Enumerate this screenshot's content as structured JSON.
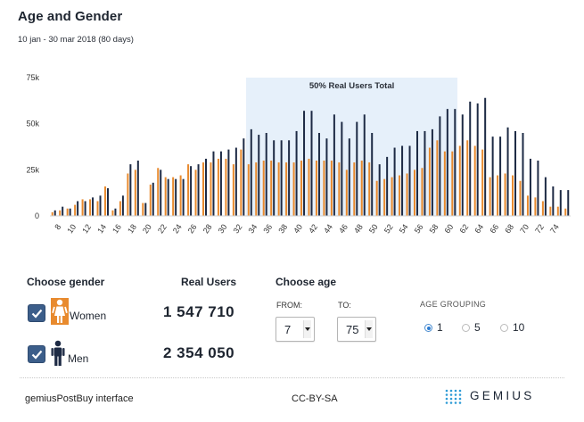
{
  "header": {
    "title": "Age and Gender",
    "subtitle": "10 jan - 30 mar 2018 (80 days)"
  },
  "chart_data": {
    "type": "bar",
    "highlight": {
      "from": 33,
      "to": 60,
      "label": "50% Real Users Total"
    },
    "x": [
      7,
      8,
      9,
      10,
      11,
      12,
      13,
      14,
      15,
      16,
      17,
      18,
      19,
      20,
      21,
      22,
      23,
      24,
      25,
      26,
      27,
      28,
      29,
      30,
      31,
      32,
      33,
      34,
      35,
      36,
      37,
      38,
      39,
      40,
      41,
      42,
      43,
      44,
      45,
      46,
      47,
      48,
      49,
      50,
      51,
      52,
      53,
      54,
      55,
      56,
      57,
      58,
      59,
      60,
      61,
      62,
      63,
      64,
      65,
      66,
      67,
      68,
      69,
      70,
      71,
      72,
      73,
      74,
      75
    ],
    "x_tick_labels": [
      "8",
      "10",
      "12",
      "14",
      "16",
      "18",
      "20",
      "22",
      "24",
      "26",
      "28",
      "30",
      "32",
      "34",
      "36",
      "38",
      "40",
      "42",
      "44",
      "46",
      "48",
      "50",
      "52",
      "54",
      "56",
      "58",
      "60",
      "62",
      "64",
      "66",
      "68",
      "70",
      "72",
      "74"
    ],
    "y_ticks": [
      "0",
      "25k",
      "50k",
      "75k"
    ],
    "ylim": [
      0,
      75000
    ],
    "series": [
      {
        "name": "Women",
        "color": "#e88a2e",
        "values": [
          2000,
          3000,
          4000,
          6000,
          9000,
          9000,
          8000,
          16000,
          3000,
          8000,
          23000,
          25000,
          7000,
          17000,
          26000,
          21000,
          21000,
          22000,
          28000,
          25000,
          29000,
          29000,
          31000,
          31000,
          28000,
          36000,
          28000,
          29000,
          30000,
          30000,
          29000,
          29000,
          29000,
          30000,
          31000,
          30000,
          30000,
          30000,
          29000,
          25000,
          29000,
          30000,
          29000,
          19000,
          20000,
          21000,
          22000,
          23000,
          25000,
          26000,
          37000,
          41000,
          35000,
          35000,
          38000,
          41000,
          38000,
          36000,
          21000,
          22000,
          23000,
          22000,
          19000,
          11000,
          10000,
          8000,
          5000,
          5000,
          4000
        ]
      },
      {
        "name": "Men",
        "color": "#1d2a44",
        "values": [
          3000,
          5000,
          4000,
          8000,
          8000,
          10000,
          11000,
          15000,
          4000,
          11000,
          28000,
          30000,
          7000,
          18000,
          25000,
          20000,
          20000,
          20000,
          27000,
          28000,
          31000,
          35000,
          35000,
          36000,
          37000,
          42000,
          47000,
          44000,
          45000,
          41000,
          41000,
          41000,
          46000,
          57000,
          57000,
          45000,
          42000,
          55000,
          51000,
          42000,
          51000,
          55000,
          45000,
          28000,
          32000,
          37000,
          38000,
          38000,
          46000,
          46000,
          47000,
          54000,
          58000,
          58000,
          55000,
          62000,
          61000,
          64000,
          43000,
          43000,
          48000,
          46000,
          45000,
          31000,
          30000,
          21000,
          16000,
          14000,
          14000
        ]
      }
    ]
  },
  "gender": {
    "heading": "Choose gender",
    "women": {
      "label": "Women",
      "checked": true
    },
    "men": {
      "label": "Men",
      "checked": true
    }
  },
  "real_users": {
    "heading": "Real Users",
    "women": "1 547 710",
    "men": "2 354 050"
  },
  "age": {
    "heading": "Choose age",
    "from_label": "FROM:",
    "to_label": "TO:",
    "from_value": "7",
    "to_value": "75"
  },
  "grouping": {
    "label": "AGE GROUPING",
    "options": [
      "1",
      "5",
      "10"
    ],
    "selected": "1"
  },
  "footer": {
    "left": "gemiusPostBuy interface",
    "center": "CC-BY-SA",
    "logo": "GEMIUS"
  },
  "colors": {
    "women": "#e88a2e",
    "men": "#1d2a44",
    "highlight": "#e6f0fa",
    "checkbox": "#3c5e8a",
    "logo_accent": "#2e9bd6"
  }
}
